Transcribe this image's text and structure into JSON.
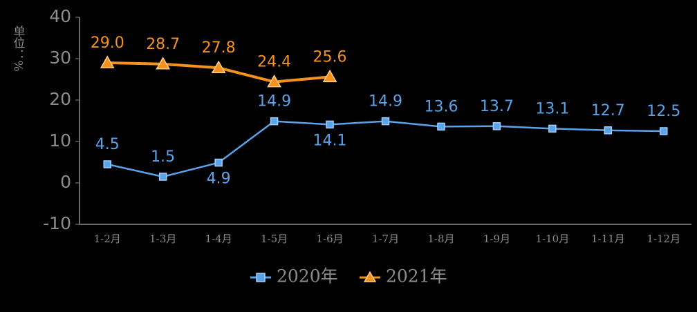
{
  "chart_data": {
    "type": "line",
    "y_label": "单位：%",
    "categories": [
      "1-2月",
      "1-3月",
      "1-4月",
      "1-5月",
      "1-6月",
      "1-7月",
      "1-8月",
      "1-9月",
      "1-10月",
      "1-11月",
      "1-12月"
    ],
    "series": [
      {
        "name": "2020年",
        "color": "#5aa3e8",
        "marker": "square",
        "values": [
          4.5,
          1.5,
          4.9,
          14.9,
          14.1,
          14.9,
          13.6,
          13.7,
          13.1,
          12.7,
          12.5
        ]
      },
      {
        "name": "2021年",
        "color": "#f5921e",
        "marker": "triangle",
        "values": [
          29.0,
          28.7,
          27.8,
          24.4,
          25.6,
          null,
          null,
          null,
          null,
          null,
          null
        ],
        "value_labels": [
          "29.0",
          "28.7",
          "27.8",
          "24.4",
          "25.6",
          null,
          null,
          null,
          null,
          null,
          null
        ]
      }
    ],
    "ylim": [
      -10,
      40
    ],
    "yticks": [
      -10,
      0,
      10,
      20,
      30,
      40
    ],
    "grid": false
  }
}
